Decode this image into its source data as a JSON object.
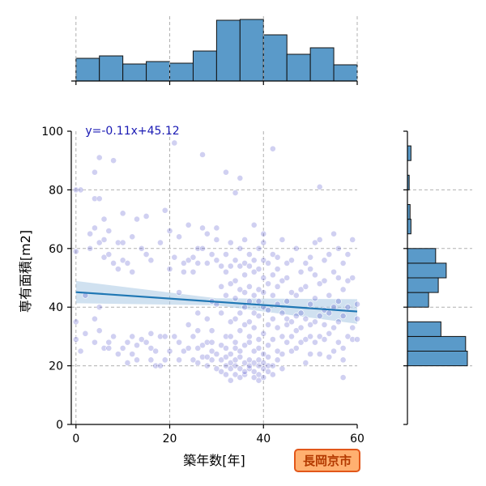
{
  "chart_data": {
    "type": "scatter",
    "title": "",
    "xlabel": "築年数[年]",
    "ylabel": "専有面積[m2]",
    "xlim": [
      -1,
      60
    ],
    "ylim": [
      0,
      100
    ],
    "xticks": [
      0,
      20,
      40,
      60
    ],
    "yticks": [
      0,
      20,
      40,
      60,
      80,
      100
    ],
    "grid": true,
    "regression": {
      "slope": -0.11,
      "intercept": 45.12,
      "label": "y=-0.11x+45.12"
    },
    "badge": "長岡京市",
    "marginal_x_hist": {
      "bin_edges": [
        0,
        5,
        10,
        15,
        20,
        25,
        30,
        35,
        40,
        45,
        50,
        55,
        60
      ],
      "counts": [
        28,
        31,
        21,
        24,
        22,
        37,
        75,
        76,
        57,
        33,
        41,
        20
      ]
    },
    "marginal_y_hist": {
      "bin_edges": [
        0,
        5,
        10,
        15,
        20,
        25,
        30,
        35,
        40,
        45,
        50,
        55,
        60,
        65,
        70,
        75,
        80,
        85,
        90,
        95,
        100
      ],
      "counts": [
        0,
        0,
        0,
        0,
        68,
        66,
        38,
        0,
        24,
        35,
        44,
        32,
        0,
        4,
        3,
        0,
        2,
        0,
        4,
        0
      ]
    },
    "points": [
      [
        0,
        29
      ],
      [
        0,
        35
      ],
      [
        0,
        59
      ],
      [
        0,
        80
      ],
      [
        1,
        25
      ],
      [
        1,
        80
      ],
      [
        2,
        31
      ],
      [
        2,
        44
      ],
      [
        3,
        60
      ],
      [
        3,
        65
      ],
      [
        4,
        28
      ],
      [
        4,
        36
      ],
      [
        4,
        67
      ],
      [
        4,
        77
      ],
      [
        4,
        86
      ],
      [
        5,
        32
      ],
      [
        5,
        40
      ],
      [
        5,
        62
      ],
      [
        5,
        77
      ],
      [
        5,
        91
      ],
      [
        6,
        26
      ],
      [
        6,
        57
      ],
      [
        6,
        63
      ],
      [
        6,
        70
      ],
      [
        7,
        26
      ],
      [
        7,
        28
      ],
      [
        7,
        58
      ],
      [
        7,
        66
      ],
      [
        8,
        30
      ],
      [
        8,
        55
      ],
      [
        8,
        90
      ],
      [
        9,
        24
      ],
      [
        9,
        62
      ],
      [
        9,
        53
      ],
      [
        10,
        26
      ],
      [
        10,
        56
      ],
      [
        10,
        62
      ],
      [
        10,
        72
      ],
      [
        11,
        21
      ],
      [
        11,
        28
      ],
      [
        11,
        55
      ],
      [
        12,
        24
      ],
      [
        12,
        30
      ],
      [
        12,
        52
      ],
      [
        12,
        64
      ],
      [
        13,
        22
      ],
      [
        13,
        27
      ],
      [
        13,
        70
      ],
      [
        14,
        29
      ],
      [
        14,
        60
      ],
      [
        15,
        28
      ],
      [
        15,
        58
      ],
      [
        15,
        71
      ],
      [
        16,
        22
      ],
      [
        16,
        26
      ],
      [
        16,
        31
      ],
      [
        16,
        56
      ],
      [
        17,
        20
      ],
      [
        17,
        25
      ],
      [
        18,
        20
      ],
      [
        18,
        30
      ],
      [
        18,
        62
      ],
      [
        19,
        22
      ],
      [
        19,
        30
      ],
      [
        19,
        73
      ],
      [
        20,
        25
      ],
      [
        20,
        53
      ],
      [
        20,
        66
      ],
      [
        21,
        30
      ],
      [
        21,
        57
      ],
      [
        21,
        96
      ],
      [
        22,
        22
      ],
      [
        22,
        28
      ],
      [
        22,
        64
      ],
      [
        22,
        45
      ],
      [
        23,
        25
      ],
      [
        23,
        52
      ],
      [
        23,
        55
      ],
      [
        24,
        26
      ],
      [
        24,
        34
      ],
      [
        24,
        56
      ],
      [
        24,
        68
      ],
      [
        25,
        22
      ],
      [
        25,
        30
      ],
      [
        25,
        52
      ],
      [
        25,
        57
      ],
      [
        26,
        21
      ],
      [
        26,
        26
      ],
      [
        26,
        32
      ],
      [
        26,
        38
      ],
      [
        26,
        55
      ],
      [
        26,
        60
      ],
      [
        27,
        23
      ],
      [
        27,
        27
      ],
      [
        27,
        60
      ],
      [
        27,
        67
      ],
      [
        27,
        92
      ],
      [
        28,
        20
      ],
      [
        28,
        23
      ],
      [
        28,
        28
      ],
      [
        28,
        36
      ],
      [
        28,
        55
      ],
      [
        28,
        65
      ],
      [
        29,
        22
      ],
      [
        29,
        25
      ],
      [
        29,
        28
      ],
      [
        29,
        32
      ],
      [
        29,
        42
      ],
      [
        29,
        58
      ],
      [
        30,
        19
      ],
      [
        30,
        24
      ],
      [
        30,
        41
      ],
      [
        30,
        56
      ],
      [
        30,
        63
      ],
      [
        30,
        67
      ],
      [
        31,
        18
      ],
      [
        31,
        22
      ],
      [
        31,
        27
      ],
      [
        31,
        38
      ],
      [
        31,
        47
      ],
      [
        31,
        54
      ],
      [
        32,
        17
      ],
      [
        32,
        20
      ],
      [
        32,
        23
      ],
      [
        32,
        26
      ],
      [
        32,
        30
      ],
      [
        32,
        44
      ],
      [
        32,
        52
      ],
      [
        32,
        58
      ],
      [
        32,
        86
      ],
      [
        33,
        15
      ],
      [
        33,
        19
      ],
      [
        33,
        21
      ],
      [
        33,
        24
      ],
      [
        33,
        30
      ],
      [
        33,
        35
      ],
      [
        33,
        48
      ],
      [
        33,
        54
      ],
      [
        33,
        62
      ],
      [
        34,
        17
      ],
      [
        34,
        20
      ],
      [
        34,
        22
      ],
      [
        34,
        26
      ],
      [
        34,
        28
      ],
      [
        34,
        36
      ],
      [
        34,
        43
      ],
      [
        34,
        49
      ],
      [
        34,
        56
      ],
      [
        34,
        79
      ],
      [
        35,
        16
      ],
      [
        35,
        19
      ],
      [
        35,
        23
      ],
      [
        35,
        25
      ],
      [
        35,
        32
      ],
      [
        35,
        38
      ],
      [
        35,
        46
      ],
      [
        35,
        54
      ],
      [
        35,
        60
      ],
      [
        35,
        84
      ],
      [
        36,
        17
      ],
      [
        36,
        18
      ],
      [
        36,
        21
      ],
      [
        36,
        27
      ],
      [
        36,
        34
      ],
      [
        36,
        40
      ],
      [
        36,
        45
      ],
      [
        36,
        51
      ],
      [
        36,
        55
      ],
      [
        36,
        63
      ],
      [
        37,
        19
      ],
      [
        37,
        20
      ],
      [
        37,
        22
      ],
      [
        37,
        28
      ],
      [
        37,
        30
      ],
      [
        37,
        35
      ],
      [
        37,
        42
      ],
      [
        37,
        47
      ],
      [
        37,
        54
      ],
      [
        37,
        58
      ],
      [
        38,
        16
      ],
      [
        38,
        18
      ],
      [
        38,
        21
      ],
      [
        38,
        25
      ],
      [
        38,
        33
      ],
      [
        38,
        38
      ],
      [
        38,
        44
      ],
      [
        38,
        52
      ],
      [
        38,
        56
      ],
      [
        38,
        68
      ],
      [
        39,
        15
      ],
      [
        39,
        17
      ],
      [
        39,
        20
      ],
      [
        39,
        22
      ],
      [
        39,
        26
      ],
      [
        39,
        29
      ],
      [
        39,
        37
      ],
      [
        39,
        42
      ],
      [
        39,
        46
      ],
      [
        39,
        53
      ],
      [
        39,
        60
      ],
      [
        40,
        16
      ],
      [
        40,
        19
      ],
      [
        40,
        21
      ],
      [
        40,
        24
      ],
      [
        40,
        31
      ],
      [
        40,
        40
      ],
      [
        40,
        45
      ],
      [
        40,
        50
      ],
      [
        40,
        56
      ],
      [
        40,
        62
      ],
      [
        40,
        65
      ],
      [
        41,
        18
      ],
      [
        41,
        20
      ],
      [
        41,
        23
      ],
      [
        41,
        27
      ],
      [
        41,
        34
      ],
      [
        41,
        39
      ],
      [
        41,
        48
      ],
      [
        41,
        55
      ],
      [
        42,
        17
      ],
      [
        42,
        20
      ],
      [
        42,
        29
      ],
      [
        42,
        36
      ],
      [
        42,
        44
      ],
      [
        42,
        51
      ],
      [
        42,
        58
      ],
      [
        42,
        94
      ],
      [
        43,
        22
      ],
      [
        43,
        25
      ],
      [
        43,
        33
      ],
      [
        43,
        41
      ],
      [
        43,
        47
      ],
      [
        43,
        53
      ],
      [
        43,
        57
      ],
      [
        44,
        19
      ],
      [
        44,
        24
      ],
      [
        44,
        30
      ],
      [
        44,
        38
      ],
      [
        44,
        49
      ],
      [
        44,
        63
      ],
      [
        45,
        28
      ],
      [
        45,
        34
      ],
      [
        45,
        36
      ],
      [
        45,
        42
      ],
      [
        45,
        50
      ],
      [
        45,
        55
      ],
      [
        46,
        25
      ],
      [
        46,
        30
      ],
      [
        46,
        35
      ],
      [
        46,
        45
      ],
      [
        46,
        56
      ],
      [
        47,
        26
      ],
      [
        47,
        32
      ],
      [
        47,
        37
      ],
      [
        47,
        44
      ],
      [
        47,
        60
      ],
      [
        48,
        28
      ],
      [
        48,
        33
      ],
      [
        48,
        38
      ],
      [
        48,
        46
      ],
      [
        48,
        52
      ],
      [
        49,
        21
      ],
      [
        49,
        29
      ],
      [
        49,
        36
      ],
      [
        49,
        47
      ],
      [
        49,
        55
      ],
      [
        50,
        24
      ],
      [
        50,
        30
      ],
      [
        50,
        34
      ],
      [
        50,
        41
      ],
      [
        50,
        53
      ],
      [
        50,
        57
      ],
      [
        51,
        28
      ],
      [
        51,
        35
      ],
      [
        51,
        43
      ],
      [
        51,
        51
      ],
      [
        51,
        62
      ],
      [
        52,
        24
      ],
      [
        52,
        30
      ],
      [
        52,
        37
      ],
      [
        52,
        48
      ],
      [
        52,
        63
      ],
      [
        52,
        81
      ],
      [
        53,
        29
      ],
      [
        53,
        34
      ],
      [
        53,
        39
      ],
      [
        53,
        49
      ],
      [
        53,
        56
      ],
      [
        54,
        23
      ],
      [
        54,
        31
      ],
      [
        54,
        38
      ],
      [
        54,
        44
      ],
      [
        54,
        58
      ],
      [
        55,
        25
      ],
      [
        55,
        33
      ],
      [
        55,
        40
      ],
      [
        55,
        52
      ],
      [
        55,
        65
      ],
      [
        56,
        28
      ],
      [
        56,
        35
      ],
      [
        56,
        42
      ],
      [
        56,
        50
      ],
      [
        56,
        60
      ],
      [
        57,
        16
      ],
      [
        57,
        22
      ],
      [
        57,
        26
      ],
      [
        57,
        37
      ],
      [
        57,
        46
      ],
      [
        57,
        55
      ],
      [
        58,
        30
      ],
      [
        58,
        40
      ],
      [
        58,
        49
      ],
      [
        58,
        58
      ],
      [
        59,
        29
      ],
      [
        59,
        33
      ],
      [
        59,
        50
      ],
      [
        59,
        63
      ],
      [
        60,
        29
      ],
      [
        60,
        36
      ],
      [
        60,
        41
      ]
    ]
  }
}
